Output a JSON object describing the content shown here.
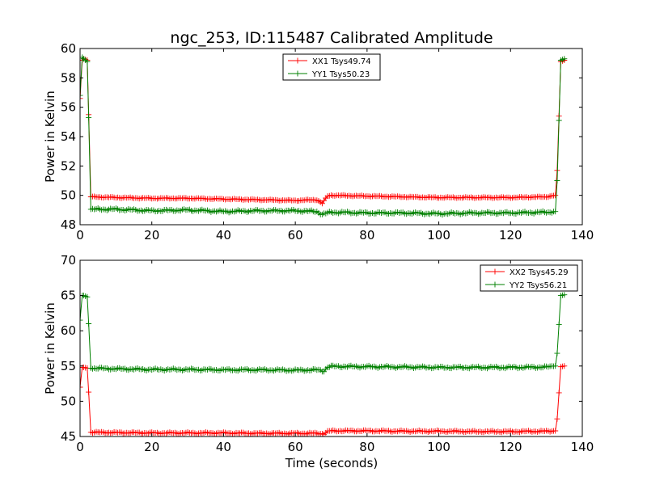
{
  "chart_data": [
    {
      "type": "line",
      "title": "ngc_253, ID:115487 Calibrated Amplitude",
      "xlabel": "",
      "ylabel": "Power in Kelvin",
      "xlim": [
        0,
        140
      ],
      "ylim": [
        48,
        60
      ],
      "xticks": [
        0,
        20,
        40,
        60,
        80,
        100,
        120,
        140
      ],
      "yticks": [
        48,
        50,
        52,
        54,
        56,
        58,
        60
      ],
      "legend_position": "top-center",
      "series": [
        {
          "name": "XX1 Tsys49.74",
          "color": "#ff0000",
          "x": [
            0,
            0.6,
            1,
            2,
            2.4,
            3,
            10,
            20,
            30,
            40,
            50,
            60,
            66,
            67.5,
            69,
            70,
            80,
            90,
            100,
            110,
            120,
            130,
            132.5,
            133,
            134,
            135
          ],
          "y": [
            56.6,
            59.2,
            59.3,
            59.2,
            55.5,
            49.9,
            49.85,
            49.8,
            49.8,
            49.75,
            49.7,
            49.65,
            49.7,
            49.45,
            49.95,
            50.0,
            49.95,
            49.9,
            49.85,
            49.85,
            49.85,
            49.9,
            50.0,
            51.7,
            59.1,
            59.2
          ]
        },
        {
          "name": "YY1 Tsys50.23",
          "color": "#008000",
          "x": [
            0,
            0.6,
            1,
            2,
            2.4,
            3,
            10,
            20,
            30,
            40,
            50,
            60,
            66,
            67.5,
            69,
            70,
            80,
            90,
            100,
            110,
            120,
            130,
            132.5,
            133,
            134,
            135
          ],
          "y": [
            56.8,
            59.4,
            59.3,
            59.1,
            55.3,
            49.05,
            49.05,
            48.95,
            49.0,
            48.9,
            48.95,
            48.95,
            48.9,
            48.7,
            48.8,
            48.85,
            48.8,
            48.8,
            48.75,
            48.8,
            48.8,
            48.85,
            48.9,
            51.0,
            59.2,
            59.3
          ]
        }
      ]
    },
    {
      "type": "line",
      "title": "",
      "xlabel": "Time (seconds)",
      "ylabel": "Power in Kelvin",
      "xlim": [
        0,
        140
      ],
      "ylim": [
        45,
        70
      ],
      "xticks": [
        0,
        20,
        40,
        60,
        80,
        100,
        120,
        140
      ],
      "yticks": [
        45,
        50,
        55,
        60,
        65,
        70
      ],
      "legend_position": "top-right",
      "series": [
        {
          "name": "XX2 Tsys45.29",
          "color": "#ff0000",
          "x": [
            0,
            0.6,
            1,
            2,
            2.4,
            3,
            10,
            20,
            30,
            40,
            50,
            60,
            66,
            68,
            69,
            70,
            80,
            90,
            100,
            110,
            120,
            130,
            132.5,
            133,
            134,
            135
          ],
          "y": [
            52.0,
            54.8,
            54.8,
            54.7,
            51.3,
            45.6,
            45.55,
            45.5,
            45.5,
            45.5,
            45.45,
            45.45,
            45.45,
            45.4,
            45.7,
            45.8,
            45.8,
            45.75,
            45.75,
            45.7,
            45.7,
            45.75,
            45.8,
            47.5,
            54.9,
            55.0
          ]
        },
        {
          "name": "YY2 Tsys56.21",
          "color": "#008000",
          "x": [
            0,
            0.6,
            1,
            2,
            2.4,
            3,
            10,
            20,
            30,
            40,
            50,
            60,
            66,
            68,
            69,
            70,
            80,
            90,
            100,
            110,
            120,
            130,
            132.5,
            133,
            134,
            135
          ],
          "y": [
            61.5,
            65.0,
            65.0,
            64.8,
            61.0,
            54.7,
            54.6,
            54.5,
            54.5,
            54.45,
            54.45,
            54.4,
            54.45,
            54.3,
            54.85,
            54.95,
            54.9,
            54.85,
            54.8,
            54.8,
            54.8,
            54.85,
            55.0,
            56.8,
            65.0,
            65.1
          ]
        }
      ]
    }
  ]
}
